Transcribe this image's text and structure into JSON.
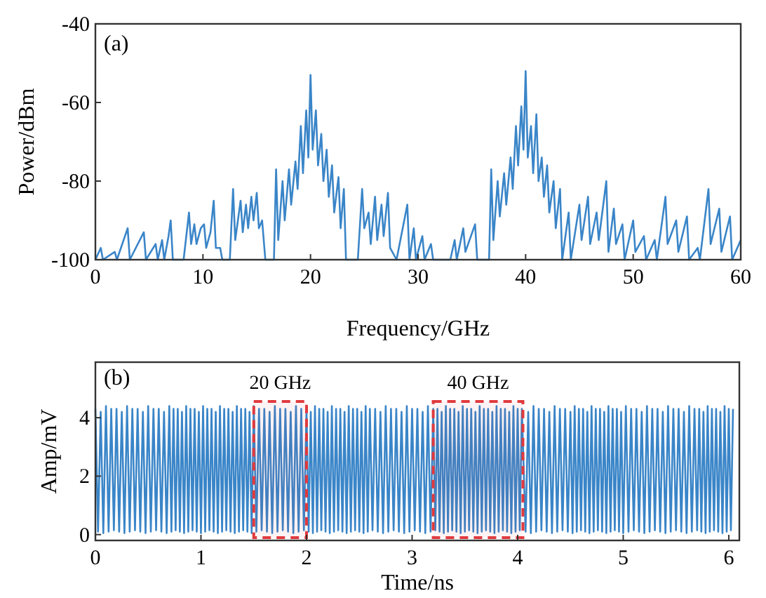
{
  "chart_data": [
    {
      "type": "line",
      "xlabel": "Frequency/GHz",
      "ylabel": "Power/dBm",
      "annotations": [
        "(a)"
      ],
      "xlim": [
        0,
        60
      ],
      "xticks": [
        0,
        10,
        20,
        30,
        40,
        50,
        60
      ],
      "ylim": [
        -100,
        -40
      ],
      "yticks": [
        -100,
        -80,
        -60,
        -40
      ],
      "series": [
        {
          "color": "#3a85c8",
          "x": [
            0,
            0.5,
            0.7,
            1.8,
            2,
            3,
            3.2,
            4.5,
            4.7,
            5.6,
            5.8,
            6.2,
            6.4,
            6.8,
            7,
            7.2,
            8.2,
            8.7,
            8.9,
            9.2,
            9.4,
            9.8,
            10.1,
            10.3,
            10.7,
            11,
            11.2,
            11.6,
            11.8,
            12.5,
            12.8,
            13,
            13.5,
            13.7,
            14,
            14.2,
            14.5,
            14.7,
            15,
            15.2,
            15.5,
            15.8,
            16.6,
            16.8,
            17,
            17.4,
            17.6,
            18,
            18.2,
            18.6,
            18.8,
            19.1,
            19.3,
            19.6,
            19.8,
            20,
            20.2,
            20.5,
            20.7,
            21,
            21.2,
            21.5,
            21.7,
            22,
            22.2,
            22.6,
            22.8,
            23.1,
            23.3,
            24.4,
            24.8,
            25,
            25.4,
            25.6,
            26,
            26.2,
            26.6,
            26.8,
            27.2,
            27.4,
            28,
            29,
            29.2,
            29.6,
            29.8,
            30.4,
            30.6,
            31.2,
            31.4,
            33,
            33.4,
            33.6,
            34.2,
            34.4,
            35.3,
            35.5,
            36.6,
            36.8,
            37,
            37.4,
            37.6,
            38,
            38.2,
            38.6,
            38.8,
            39.1,
            39.3,
            39.6,
            39.8,
            40,
            40.2,
            40.5,
            40.7,
            41,
            41.2,
            41.5,
            41.7,
            42,
            42.2,
            42.6,
            42.8,
            43.2,
            43.4,
            44,
            44.2,
            45,
            45.2,
            45.8,
            46,
            46.6,
            46.8,
            47.5,
            47.7,
            48.2,
            48.4,
            49,
            49.2,
            50,
            50.2,
            51,
            51.2,
            52,
            52.2,
            53,
            53.2,
            54,
            54.2,
            55,
            55.2,
            56,
            56.2,
            57,
            57.2,
            58,
            58.2,
            59,
            59.2,
            60
          ],
          "values": [
            -100,
            -97,
            -100,
            -98,
            -100,
            -92,
            -100,
            -93,
            -100,
            -96,
            -100,
            -95,
            -100,
            -94,
            -90,
            -100,
            -100,
            -88,
            -96,
            -91,
            -96,
            -92,
            -91,
            -97,
            -93,
            -85,
            -97,
            -97,
            -100,
            -100,
            -82,
            -95,
            -85,
            -93,
            -86,
            -92,
            -84,
            -90,
            -83,
            -92,
            -90,
            -100,
            -100,
            -77,
            -95,
            -80,
            -90,
            -77,
            -86,
            -75,
            -82,
            -66,
            -78,
            -62,
            -74,
            -53,
            -72,
            -62,
            -76,
            -68,
            -80,
            -72,
            -84,
            -76,
            -88,
            -79,
            -92,
            -82,
            -100,
            -100,
            -82,
            -92,
            -88,
            -96,
            -84,
            -95,
            -86,
            -94,
            -83,
            -97,
            -100,
            -86,
            -100,
            -92,
            -100,
            -94,
            -100,
            -96,
            -100,
            -100,
            -95,
            -100,
            -92,
            -98,
            -91,
            -100,
            -100,
            -77,
            -95,
            -80,
            -89,
            -78,
            -86,
            -74,
            -82,
            -66,
            -76,
            -61,
            -72,
            -52,
            -74,
            -66,
            -78,
            -63,
            -80,
            -74,
            -84,
            -76,
            -88,
            -80,
            -92,
            -82,
            -100,
            -88,
            -100,
            -86,
            -95,
            -84,
            -96,
            -88,
            -95,
            -80,
            -98,
            -87,
            -96,
            -91,
            -100,
            -90,
            -98,
            -94,
            -100,
            -95,
            -100,
            -84,
            -96,
            -90,
            -98,
            -89,
            -100,
            -97,
            -100,
            -82,
            -96,
            -87,
            -98,
            -89,
            -100,
            -95
          ]
        }
      ]
    },
    {
      "type": "line",
      "xlabel": "Time/ns",
      "ylabel": "Amp/mV",
      "annotations": [
        "(b)"
      ],
      "xlim": [
        0,
        6.1
      ],
      "xticks": [
        0,
        1,
        2,
        3,
        4,
        5,
        6
      ],
      "ylim": [
        -0.2,
        5.9
      ],
      "yticks": [
        0,
        2,
        4
      ],
      "bands": [
        {
          "axis": "x",
          "from": 1.5,
          "to": 2.0,
          "label": "20 GHz",
          "color": "#e03a3e"
        },
        {
          "axis": "x",
          "from": 3.2,
          "to": 4.05,
          "label": "40 GHz",
          "color": "#e03a3e"
        }
      ],
      "series": [
        {
          "color": "#3a85c8",
          "x": [
            0,
            0.025,
            0.05,
            0.075,
            0.1,
            0.125,
            0.15,
            0.175,
            0.2,
            0.225,
            0.25,
            0.275,
            0.3,
            0.325,
            0.35,
            0.375,
            0.4,
            0.425,
            0.45,
            0.475,
            0.5,
            0.525,
            0.55,
            0.575,
            0.6,
            0.625,
            0.65,
            0.675,
            0.7,
            0.72,
            0.74,
            0.76,
            0.78,
            0.8,
            0.82,
            0.84,
            0.86,
            0.88,
            0.9,
            0.92,
            0.94,
            0.96,
            0.98,
            1,
            1.02,
            1.04,
            1.06,
            1.08,
            1.1,
            1.12,
            1.14,
            1.16,
            1.18,
            1.2,
            1.22,
            1.24,
            1.26,
            1.28,
            1.3,
            1.32,
            1.34,
            1.36,
            1.38,
            1.4,
            1.42,
            1.44,
            1.46,
            1.48,
            1.5,
            1.525,
            1.55,
            1.575,
            1.6,
            1.625,
            1.65,
            1.675,
            1.7,
            1.725,
            1.75,
            1.775,
            1.8,
            1.825,
            1.85,
            1.875,
            1.9,
            1.925,
            1.95,
            1.975,
            2,
            2.02,
            2.04,
            2.06,
            2.08,
            2.1,
            2.12,
            2.14,
            2.16,
            2.18,
            2.2,
            2.22,
            2.24,
            2.26,
            2.28,
            2.3,
            2.32,
            2.34,
            2.36,
            2.38,
            2.4,
            2.42,
            2.44,
            2.46,
            2.48,
            2.5,
            2.52,
            2.54,
            2.56,
            2.58,
            2.6,
            2.625,
            2.65,
            2.675,
            2.7,
            2.725,
            2.75,
            2.775,
            2.8,
            2.825,
            2.85,
            2.875,
            2.9,
            2.925,
            2.95,
            2.975,
            3,
            3.025,
            3.05,
            3.075,
            3.1,
            3.125,
            3.15,
            3.175,
            3.2,
            3.22,
            3.24,
            3.26,
            3.28,
            3.3,
            3.32,
            3.34,
            3.36,
            3.38,
            3.4,
            3.42,
            3.44,
            3.46,
            3.48,
            3.5,
            3.52,
            3.54,
            3.56,
            3.58,
            3.6,
            3.62,
            3.64,
            3.66,
            3.68,
            3.7,
            3.72,
            3.74,
            3.76,
            3.78,
            3.8,
            3.82,
            3.84,
            3.86,
            3.88,
            3.9,
            3.92,
            3.94,
            3.96,
            3.98,
            4,
            4.02,
            4.04,
            4.075,
            4.1,
            4.125,
            4.15,
            4.175,
            4.2,
            4.225,
            4.25,
            4.275,
            4.3,
            4.325,
            4.35,
            4.375,
            4.4,
            4.425,
            4.45,
            4.475,
            4.5,
            4.52,
            4.54,
            4.56,
            4.58,
            4.6,
            4.62,
            4.64,
            4.66,
            4.68,
            4.7,
            4.72,
            4.74,
            4.76,
            4.78,
            4.8,
            4.82,
            4.84,
            4.86,
            4.88,
            4.9,
            4.92,
            4.94,
            4.96,
            4.98,
            5,
            5.025,
            5.05,
            5.075,
            5.1,
            5.125,
            5.15,
            5.175,
            5.2,
            5.225,
            5.25,
            5.275,
            5.3,
            5.325,
            5.35,
            5.375,
            5.4,
            5.425,
            5.45,
            5.475,
            5.5,
            5.525,
            5.55,
            5.575,
            5.6,
            5.625,
            5.65,
            5.675,
            5.7,
            5.72,
            5.74,
            5.76,
            5.78,
            5.8,
            5.82,
            5.84,
            5.86,
            5.88,
            5.9,
            5.92,
            5.94,
            5.96,
            5.98,
            6,
            6.02,
            6.04
          ],
          "values": [
            4.3,
            0.1,
            4.2,
            0.05,
            4.4,
            0.1,
            4.3,
            0.15,
            4.3,
            0.1,
            4.2,
            0.05,
            4.4,
            0.1,
            4.3,
            0.15,
            4.3,
            0.1,
            4.2,
            0.05,
            4.4,
            0.1,
            4.3,
            0.15,
            4.3,
            0.1,
            4.2,
            0.05,
            4.4,
            0.1,
            4.3,
            0.15,
            4.3,
            0.1,
            4.2,
            0.05,
            4.4,
            0.1,
            4.3,
            0.15,
            4.3,
            0.1,
            4.2,
            0.05,
            4.4,
            0.1,
            4.3,
            0.15,
            4.3,
            0.1,
            4.2,
            0.05,
            4.4,
            0.1,
            4.3,
            0.15,
            4.3,
            0.1,
            4.2,
            0.05,
            4.4,
            0.1,
            4.3,
            0.15,
            4.3,
            0.1,
            4.2,
            0.05,
            4.4,
            0.1,
            4.3,
            0.15,
            4.3,
            0.1,
            4.2,
            0.05,
            4.4,
            0.1,
            4.3,
            0.15,
            4.3,
            0.1,
            4.2,
            0.05,
            4.4,
            0.1,
            4.3,
            0.15,
            4.3,
            0.1,
            4.2,
            0.05,
            4.4,
            0.1,
            4.3,
            0.15,
            4.3,
            0.1,
            4.2,
            0.05,
            4.4,
            0.1,
            4.3,
            0.15,
            4.3,
            0.1,
            4.2,
            0.05,
            4.4,
            0.1,
            4.3,
            0.15,
            4.3,
            0.1,
            4.2,
            0.05,
            4.4,
            0.1,
            4.3,
            0.15,
            4.3,
            0.1,
            4.2,
            0.05,
            4.4,
            0.1,
            4.3,
            0.15,
            4.3,
            0.1,
            4.2,
            0.05,
            4.4,
            0.1,
            4.3,
            0.15,
            4.3,
            0.1,
            4.2,
            0.05,
            4.4,
            0.1,
            4.3,
            0.15,
            4.3,
            0.1,
            4.2,
            0.05,
            4.4,
            0.1,
            4.3,
            0.15,
            4.3,
            0.1,
            4.2,
            0.05,
            4.4,
            0.1,
            4.3,
            0.15,
            4.3,
            0.1,
            4.2,
            0.05,
            4.4,
            0.1,
            4.3,
            0.15,
            4.3,
            0.1,
            4.2,
            0.05,
            4.4,
            0.1,
            4.3,
            0.15,
            4.3,
            0.1,
            4.2,
            0.05,
            4.4,
            0.1,
            4.3,
            0.15,
            4.3,
            0.1,
            4.2,
            0.05,
            4.4,
            0.1,
            4.3,
            0.15,
            4.3,
            0.1,
            4.2,
            0.05,
            4.4,
            0.1,
            4.3,
            0.15,
            4.3,
            0.1,
            4.2,
            0.05,
            4.4,
            0.1,
            4.3,
            0.15,
            4.3,
            0.1,
            4.2,
            0.05,
            4.4,
            0.1,
            4.3,
            0.15,
            4.3,
            0.1,
            4.2,
            0.05,
            4.4,
            0.1,
            4.3,
            0.15,
            4.3,
            0.1,
            4.2,
            0.05,
            4.4,
            0.1,
            4.3,
            0.15,
            4.3,
            0.1,
            4.2,
            0.05,
            4.4,
            0.1,
            4.3,
            0.15,
            4.3,
            0.1,
            4.2,
            0.05,
            4.4,
            0.1,
            4.3,
            0.15,
            4.3,
            0.1,
            4.2,
            0.05,
            4.4,
            0.1,
            4.3,
            0.15,
            4.3,
            0.1,
            4.2,
            0.05,
            4.4,
            0.1,
            4.3,
            0.15,
            4.3,
            0.1,
            4.2,
            0.05,
            4.4,
            0.1,
            4.3,
            0.15,
            4.3
          ]
        }
      ]
    }
  ]
}
